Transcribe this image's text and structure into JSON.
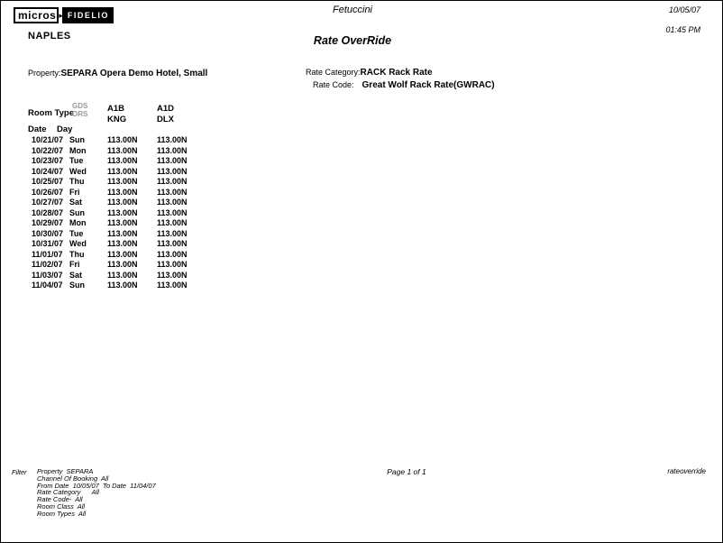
{
  "header": {
    "logo_micros": "micros",
    "logo_arrow": "▸",
    "logo_fidelio": "FIDELIO",
    "region": "NAPLES",
    "title": "Fetuccini",
    "subtitle": "Rate OverRide",
    "date": "10/05/07",
    "time": "01:45 PM"
  },
  "info": {
    "property_label": "Property:",
    "property_value": "SEPARA Opera Demo Hotel, Small",
    "rate_category_label": "Rate Category:",
    "rate_category_value": "RACK Rack Rate",
    "rate_code_label": "Rate Code:",
    "rate_code_value": "Great Wolf Rack Rate(GWRAC)"
  },
  "table": {
    "room_type_label": "Room Type",
    "channel_labels": [
      "GDS",
      "ORS"
    ],
    "columns": [
      {
        "code": "A1B",
        "room": "KNG"
      },
      {
        "code": "A1D",
        "room": "DLX"
      }
    ],
    "date_label": "Date",
    "day_label": "Day",
    "rows": [
      {
        "date": "10/21/07",
        "day": "Sun",
        "values": [
          "113.00N",
          "113.00N"
        ]
      },
      {
        "date": "10/22/07",
        "day": "Mon",
        "values": [
          "113.00N",
          "113.00N"
        ]
      },
      {
        "date": "10/23/07",
        "day": "Tue",
        "values": [
          "113.00N",
          "113.00N"
        ]
      },
      {
        "date": "10/24/07",
        "day": "Wed",
        "values": [
          "113.00N",
          "113.00N"
        ]
      },
      {
        "date": "10/25/07",
        "day": "Thu",
        "values": [
          "113.00N",
          "113.00N"
        ]
      },
      {
        "date": "10/26/07",
        "day": "Fri",
        "values": [
          "113.00N",
          "113.00N"
        ]
      },
      {
        "date": "10/27/07",
        "day": "Sat",
        "values": [
          "113.00N",
          "113.00N"
        ]
      },
      {
        "date": "10/28/07",
        "day": "Sun",
        "values": [
          "113.00N",
          "113.00N"
        ]
      },
      {
        "date": "10/29/07",
        "day": "Mon",
        "values": [
          "113.00N",
          "113.00N"
        ]
      },
      {
        "date": "10/30/07",
        "day": "Tue",
        "values": [
          "113.00N",
          "113.00N"
        ]
      },
      {
        "date": "10/31/07",
        "day": "Wed",
        "values": [
          "113.00N",
          "113.00N"
        ]
      },
      {
        "date": "11/01/07",
        "day": "Thu",
        "values": [
          "113.00N",
          "113.00N"
        ]
      },
      {
        "date": "11/02/07",
        "day": "Fri",
        "values": [
          "113.00N",
          "113.00N"
        ]
      },
      {
        "date": "11/03/07",
        "day": "Sat",
        "values": [
          "113.00N",
          "113.00N"
        ]
      },
      {
        "date": "11/04/07",
        "day": "Sun",
        "values": [
          "113.00N",
          "113.00N"
        ]
      }
    ]
  },
  "footer": {
    "filter_label": "Filter",
    "filter_lines": [
      "Property  SEPARA",
      "Channel Of Booking  All",
      "From Date  10/05/07  To Date  11/04/07",
      "Rate Category      All",
      "Rate Code-  All",
      "Room Class  All",
      "Room Types  All"
    ],
    "page_label": "Page 1 of 1",
    "report_name": "rateoverride"
  },
  "colors": {
    "text": "#000000",
    "muted_header": "#989898",
    "logo_background": "#000000"
  }
}
